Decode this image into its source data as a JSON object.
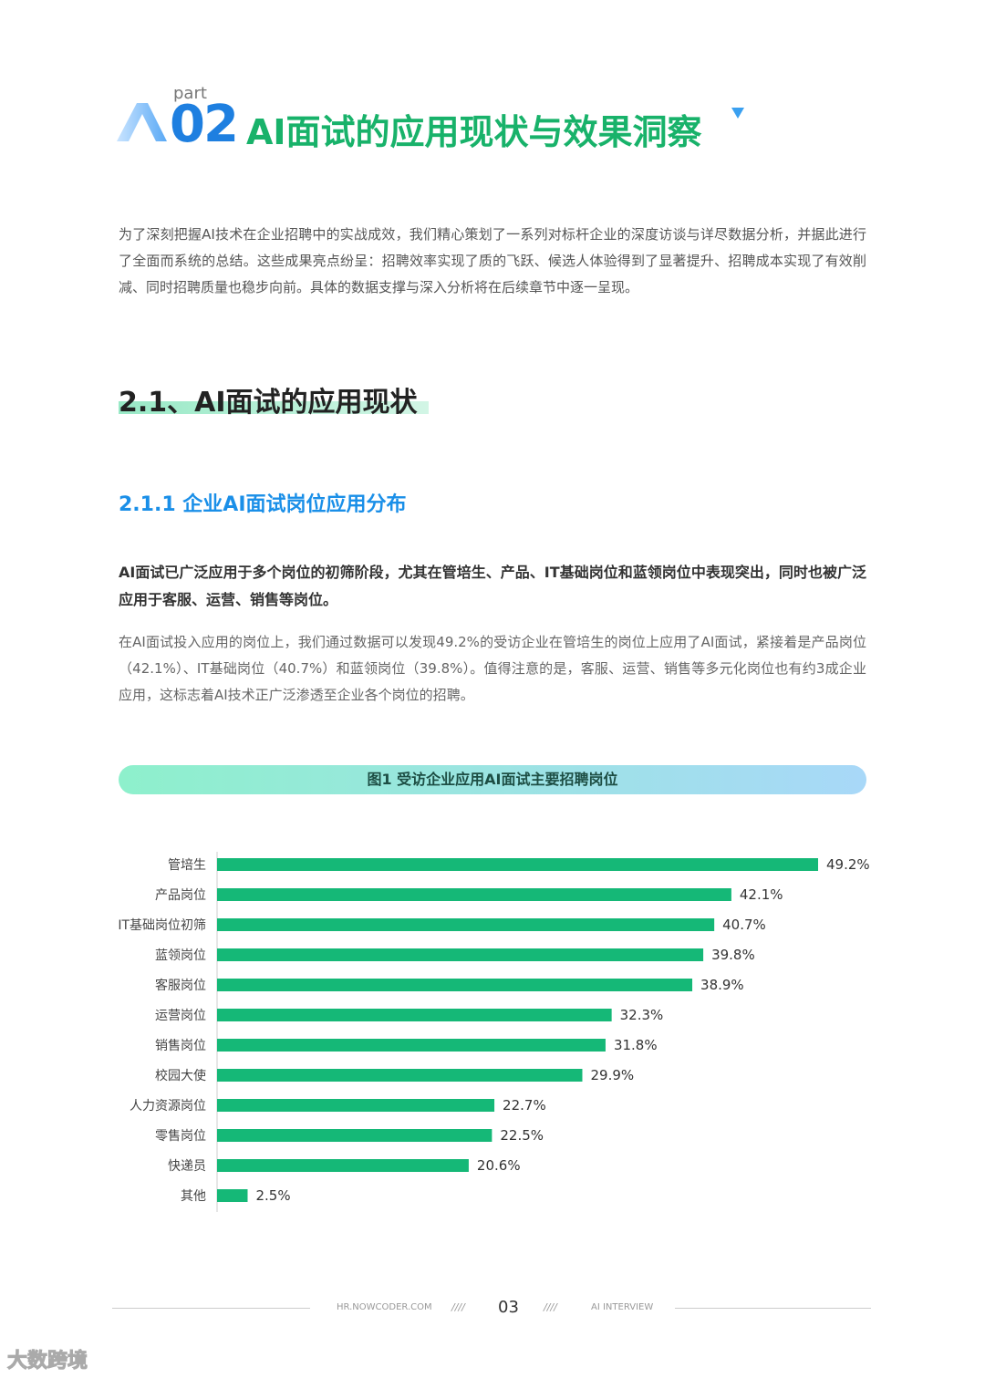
{
  "header": {
    "part": "part",
    "number": "02",
    "title": "AI面试的应用现状与效果洞察"
  },
  "intro": "为了深刻把握AI技术在企业招聘中的实战成效，我们精心策划了一系列对标杆企业的深度访谈与详尽数据分析，并据此进行了全面而系统的总结。这些成果亮点纷呈：招聘效率实现了质的飞跃、候选人体验得到了显著提升、招聘成本实现了有效削减、同时招聘质量也稳步向前。具体的数据支撑与深入分析将在后续章节中逐一呈现。",
  "section": "2.1、AI面试的应用现状",
  "subsection": "2.1.1 企业AI面试岗位应用分布",
  "lead": "AI面试已广泛应用于多个岗位的初筛阶段，尤其在管培生、产品、IT基础岗位和蓝领岗位中表现突出，同时也被广泛应用于客服、运营、销售等岗位。",
  "body": "在AI面试投入应用的岗位上，我们通过数据可以发现49.2%的受访企业在管培生的岗位上应用了AI面试，紧接着是产品岗位（42.1%）、IT基础岗位（40.7%）和蓝领岗位（39.8%）。值得注意的是，客服、运营、销售等多元化岗位也有约3成企业应用，这标志着AI技术正广泛渗透至企业各个岗位的招聘。",
  "chart_data": {
    "type": "bar",
    "orientation": "horizontal",
    "title": "图1 受访企业应用AI面试主要招聘岗位",
    "categories": [
      "管培生",
      "产品岗位",
      "IT基础岗位初筛",
      "蓝领岗位",
      "客服岗位",
      "运营岗位",
      "销售岗位",
      "校园大使",
      "人力资源岗位",
      "零售岗位",
      "快递员",
      "其他"
    ],
    "values": [
      49.2,
      42.1,
      40.7,
      39.8,
      38.9,
      32.3,
      31.8,
      29.9,
      22.7,
      22.5,
      20.6,
      2.5
    ],
    "value_labels": [
      "49.2%",
      "42.1%",
      "40.7%",
      "39.8%",
      "38.9%",
      "32.3%",
      "31.8%",
      "29.9%",
      "22.7%",
      "22.5%",
      "20.6%",
      "2.5%"
    ],
    "color": "#15b877"
  },
  "footer": {
    "site": "HR.NOWCODER.COM",
    "divider_left": "////",
    "page": "03",
    "divider_right": "////",
    "tag": "AI INTERVIEW"
  },
  "watermark": "大数跨境"
}
